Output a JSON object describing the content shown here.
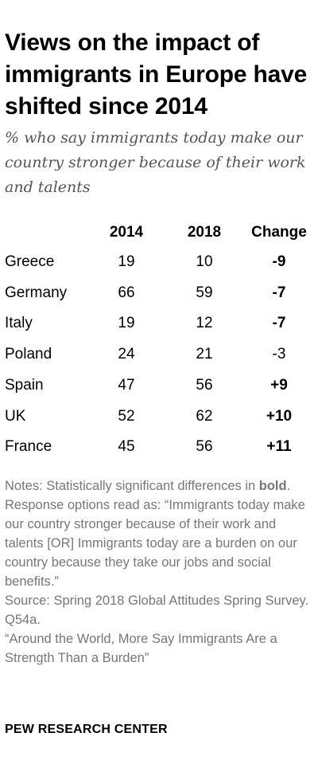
{
  "chart_data": {
    "type": "table",
    "title": "Views on the impact of immigrants in Europe have shifted since 2014",
    "subtitle": "% who say immigrants today make our country stronger because of their work and talents",
    "columns": [
      "",
      "2014",
      "2018",
      "Change"
    ],
    "rows": [
      {
        "country": "Greece",
        "y2014": "19",
        "y2018": "10",
        "change": "-9",
        "significant": true
      },
      {
        "country": "Germany",
        "y2014": "66",
        "y2018": "59",
        "change": "-7",
        "significant": true
      },
      {
        "country": "Italy",
        "y2014": "19",
        "y2018": "12",
        "change": "-7",
        "significant": true
      },
      {
        "country": "Poland",
        "y2014": "24",
        "y2018": "21",
        "change": "-3",
        "significant": false
      },
      {
        "country": "Spain",
        "y2014": "47",
        "y2018": "56",
        "change": "+9",
        "significant": true
      },
      {
        "country": "UK",
        "y2014": "52",
        "y2018": "62",
        "change": "+10",
        "significant": true
      },
      {
        "country": "France",
        "y2014": "45",
        "y2018": "56",
        "change": "+11",
        "significant": true
      }
    ]
  },
  "notes": {
    "line1_prefix": "Notes: Statistically significant differences in ",
    "line1_bold": "bold",
    "line1_suffix": ".",
    "response": "Response options read as: “Immigrants today make our country stronger because of their work and talents [OR] Immigrants today are a burden on our country because they take our jobs and social benefits.”",
    "source": "Source: Spring 2018 Global Attitudes Spring Survey. Q54a.",
    "report": "“Around the World, More Say Immigrants Are a Strength Than a Burden”"
  },
  "footer": {
    "org": "PEW RESEARCH CENTER"
  }
}
